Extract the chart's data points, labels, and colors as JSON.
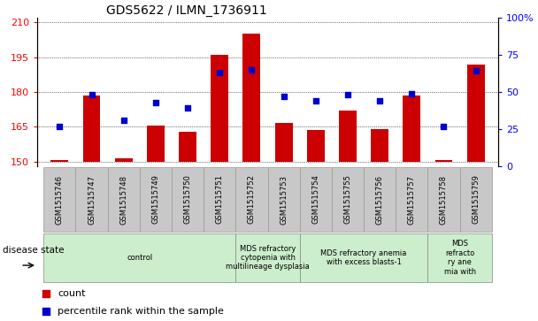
{
  "title": "GDS5622 / ILMN_1736911",
  "samples": [
    "GSM1515746",
    "GSM1515747",
    "GSM1515748",
    "GSM1515749",
    "GSM1515750",
    "GSM1515751",
    "GSM1515752",
    "GSM1515753",
    "GSM1515754",
    "GSM1515755",
    "GSM1515756",
    "GSM1515757",
    "GSM1515758",
    "GSM1515759"
  ],
  "counts": [
    150.5,
    178.5,
    151.5,
    165.5,
    163.0,
    196.0,
    205.0,
    166.5,
    163.5,
    172.0,
    164.0,
    178.5,
    150.5,
    192.0
  ],
  "percentile_ranks": [
    27,
    48,
    31,
    43,
    39,
    63,
    65,
    47,
    44,
    48,
    44,
    49,
    27,
    64
  ],
  "ylim_left": [
    148,
    212
  ],
  "ylim_right": [
    0,
    100
  ],
  "yticks_left": [
    150,
    165,
    180,
    195,
    210
  ],
  "yticks_right": [
    0,
    25,
    50,
    75,
    100
  ],
  "bar_color": "#cc0000",
  "dot_color": "#0000cc",
  "bar_bottom": 150,
  "disease_groups": [
    {
      "label": "control",
      "start": 0,
      "end": 6,
      "color": "#cceecc"
    },
    {
      "label": "MDS refractory\ncytopenia with\nmultilineage dysplasia",
      "start": 6,
      "end": 8,
      "color": "#cceecc"
    },
    {
      "label": "MDS refractory anemia\nwith excess blasts-1",
      "start": 8,
      "end": 12,
      "color": "#cceecc"
    },
    {
      "label": "MDS\nrefracto\nry ane\nmia with",
      "start": 12,
      "end": 14,
      "color": "#cceecc"
    }
  ],
  "legend_count_label": "count",
  "legend_pct_label": "percentile rank within the sample",
  "disease_state_label": "disease state",
  "xtick_bg_color": "#c8c8c8",
  "bg_color": "#ffffff"
}
